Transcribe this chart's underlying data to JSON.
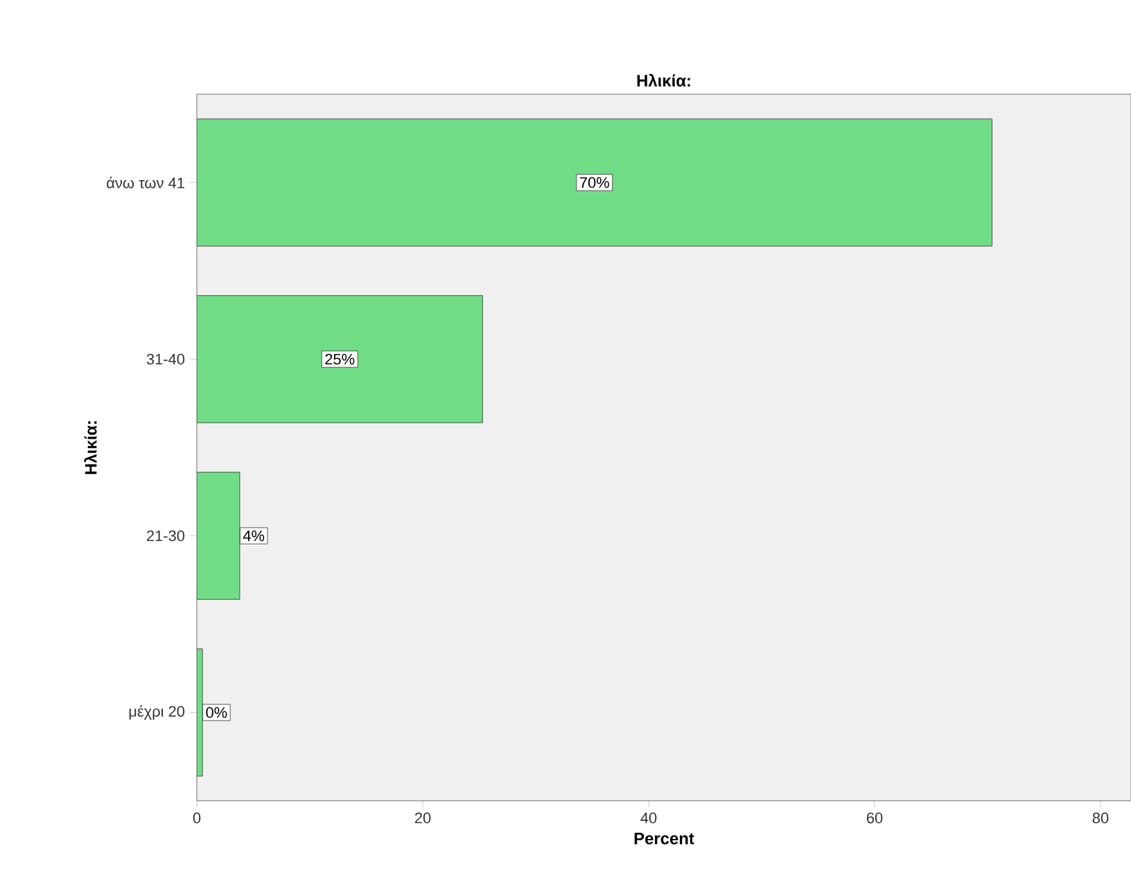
{
  "chart_data": {
    "type": "bar",
    "orientation": "horizontal",
    "title": "Ηλικία:",
    "xlabel": "Percent",
    "ylabel": "Ηλικία:",
    "categories": [
      "άνω των 41",
      "31-40",
      "21-30",
      "μέχρι 20"
    ],
    "values": [
      70.4,
      25.3,
      3.8,
      0.5
    ],
    "value_labels": [
      "70%",
      "25%",
      "4%",
      "0%"
    ],
    "color": "#70dc86",
    "xlim": [
      0,
      82.7
    ],
    "xticks": [
      0,
      20,
      40,
      60,
      80
    ]
  }
}
